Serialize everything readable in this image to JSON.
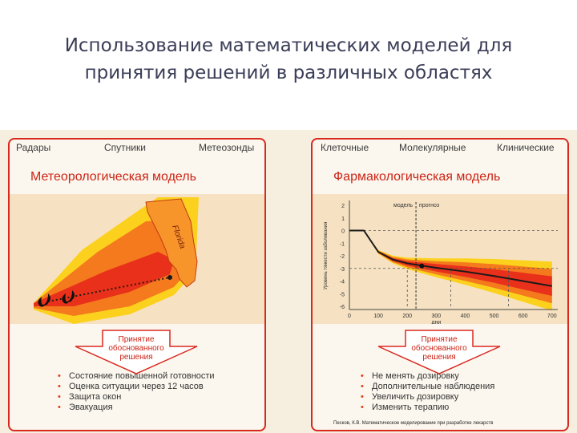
{
  "slide": {
    "title_line1": "Использование математических моделей для",
    "title_line2": "принятия решений в различных областях"
  },
  "meteo": {
    "tabs": [
      "Радары",
      "Спутники",
      "Метеозонды"
    ],
    "title": "Метеорологическая модель",
    "map_label": "Florida",
    "decision": [
      "Принятие",
      "обоснованного",
      "решения"
    ],
    "bullets": [
      "Состояние повышенной готовности",
      "Оценка ситуации через 12 часов",
      "Защита окон",
      "Эвакуация"
    ]
  },
  "pharma": {
    "tabs": [
      "Клеточные",
      "Молекулярные",
      "Клинические"
    ],
    "title": "Фармакологическая модель",
    "chart_labels": {
      "ylabel": "Уровень тяжести заболевания",
      "xlabel": "дни",
      "model": "модель",
      "forecast": "прогноз"
    },
    "decision": [
      "Принятие",
      "обоснованного",
      "решения"
    ],
    "bullets": [
      "Не менять дозировку",
      "Дополнительные наблюдения",
      "Увеличить дозировку",
      "Изменить терапию"
    ],
    "citation": "Песков, К.В. Математическое моделирование при разработке лекарств"
  },
  "chart_data": {
    "type": "line",
    "title": "",
    "xlabel": "дни",
    "ylabel": "Уровень тяжести заболевания",
    "x_ticks": [
      0,
      100,
      200,
      300,
      400,
      500,
      600,
      700
    ],
    "y_ticks": [
      2,
      1,
      0,
      -1,
      -2,
      -3,
      -4,
      -5,
      -6
    ],
    "xlim": [
      0,
      720
    ],
    "ylim": [
      -6,
      2
    ],
    "model_forecast_split_x": 230,
    "reference_lines_y": [
      0,
      -3
    ],
    "reference_lines_x": [
      200,
      350,
      550
    ],
    "grid": false,
    "legend": "none",
    "series": [
      {
        "x": [
          0,
          50,
          100,
          150,
          200,
          300,
          400,
          500,
          600,
          700
        ],
        "values": [
          0,
          0,
          -1.7,
          -2.3,
          -2.6,
          -2.95,
          -3.25,
          -3.6,
          -4.0,
          -4.4
        ]
      }
    ],
    "observed_point": {
      "x": 250,
      "y": -2.8
    },
    "colors": {
      "line": "#1a1a1a",
      "band_inner": "#e8301a",
      "band_mid": "#f47a1d",
      "band_outer": "#fbd11d",
      "background": "#f6e2c2"
    }
  }
}
